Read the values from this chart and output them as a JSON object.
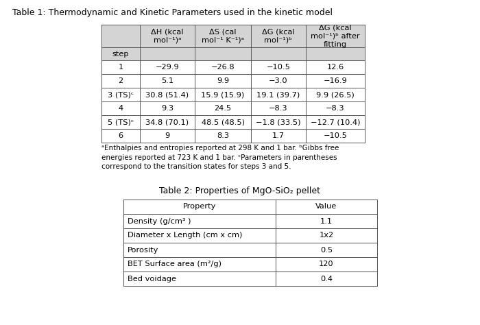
{
  "title1": "Table 1: Thermodynamic and Kinetic Parameters used in the kinetic model",
  "table1_header": [
    "step",
    "ΔH (kcal\nmol⁻¹)ᵃ",
    "ΔS (cal\nmol⁻¹ K⁻¹)ᵃ",
    "ΔG (kcal\nmol⁻¹)ᵇ",
    "ΔG (kcal\nmol⁻¹)ᵇ after\nfitting"
  ],
  "table1_rows": [
    [
      "1",
      "−29.9",
      "−26.8",
      "−10.5",
      "12.6"
    ],
    [
      "2",
      "5.1",
      "9.9",
      "−3.0",
      "−16.9"
    ],
    [
      "3 (TS)ᶜ",
      "30.8 (51.4)",
      "15.9 (15.9)",
      "19.1 (39.7)",
      "9.9 (26.5)"
    ],
    [
      "4",
      "9.3",
      "24.5",
      "−8.3",
      "−8.3"
    ],
    [
      "5 (TS)ᶜ",
      "34.8 (70.1)",
      "48.5 (48.5)",
      "−1.8 (33.5)",
      "−12.7 (10.4)"
    ],
    [
      "6",
      "9",
      "8.3",
      "1.7",
      "−10.5"
    ]
  ],
  "footnote1": "ᵃEnthalpies and entropies reported at 298 K and 1 bar. ᵇGibbs free\nenergies reported at 723 K and 1 bar. ᶜParameters in parentheses\ncorrespond to the transition states for steps 3 and 5.",
  "title2": "Table 2: Properties of MgO-SiO₂ pellet",
  "table2_header": [
    "Property",
    "Value"
  ],
  "table2_rows": [
    [
      "Density (g/cm³ )",
      "1.1"
    ],
    [
      "Diameter x Length (cm x cm)",
      "1x2"
    ],
    [
      "Porosity",
      "0.5"
    ],
    [
      "BET Surface area (m²/g)",
      "120"
    ],
    [
      "Bed voidage",
      "0.4"
    ]
  ],
  "bg_color": "#ffffff",
  "header_bg1": "#d4d4d4",
  "header_bg2": "#ffffff",
  "table_border_color": "#555555",
  "text_color": "#000000",
  "fontsize_title": 9.0,
  "fontsize_table": 8.2,
  "fontsize_footnote": 7.5
}
